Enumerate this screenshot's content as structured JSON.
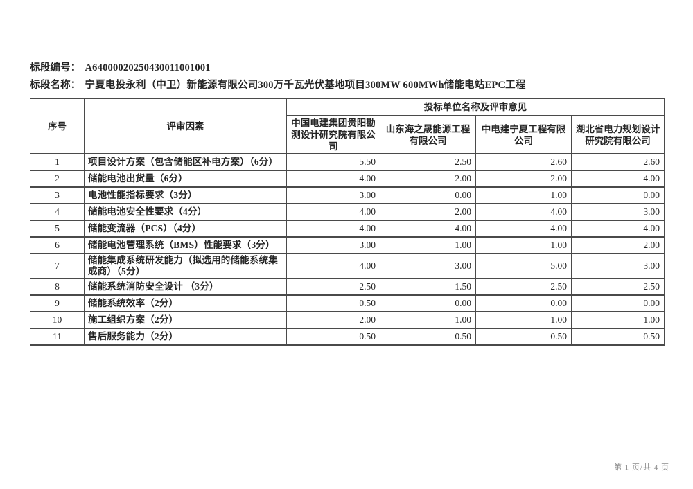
{
  "doc": {
    "code_label": "标段编号：",
    "code": "A64000020250430011001001",
    "name_label": "标段名称：",
    "name": "宁夏电投永利（中卫）新能源有限公司300万千瓦光伏基地项目300MW 600MWh储能电站EPC工程",
    "footer": "第 1 页/共 4 页"
  },
  "table": {
    "col_index": "序号",
    "col_factor": "评审因素",
    "col_group": "投标单位名称及评审意见",
    "bidders": [
      "中国电建集团贵阳勘测设计研究院有限公司",
      "山东海之晟能源工程有限公司",
      "中电建宁夏工程有限公司",
      "湖北省电力规划设计研究院有限公司"
    ],
    "rows": [
      {
        "index": "1",
        "factor": "项目设计方案（包含储能区补电方案）（6分）",
        "scores": [
          "5.50",
          "2.50",
          "2.60",
          "2.60"
        ]
      },
      {
        "index": "2",
        "factor": "储能电池出货量（6分）",
        "scores": [
          "4.00",
          "2.00",
          "2.00",
          "4.00"
        ]
      },
      {
        "index": "3",
        "factor": "电池性能指标要求（3分）",
        "scores": [
          "3.00",
          "0.00",
          "1.00",
          "0.00"
        ]
      },
      {
        "index": "4",
        "factor": "储能电池安全性要求（4分）",
        "scores": [
          "4.00",
          "2.00",
          "4.00",
          "3.00"
        ]
      },
      {
        "index": "5",
        "factor": "储能变流器（PCS）（4分）",
        "scores": [
          "4.00",
          "4.00",
          "4.00",
          "4.00"
        ]
      },
      {
        "index": "6",
        "factor": "储能电池管理系统（BMS）性能要求（3分）",
        "scores": [
          "3.00",
          "1.00",
          "1.00",
          "2.00"
        ]
      },
      {
        "index": "7",
        "factor": "储能集成系统研发能力（拟选用的储能系统集成商）（5分）",
        "scores": [
          "4.00",
          "3.00",
          "5.00",
          "3.00"
        ]
      },
      {
        "index": "8",
        "factor": "储能系统消防安全设计 （3分）",
        "scores": [
          "2.50",
          "1.50",
          "2.50",
          "2.50"
        ]
      },
      {
        "index": "9",
        "factor": "储能系统效率（2分）",
        "scores": [
          "0.50",
          "0.00",
          "0.00",
          "0.00"
        ]
      },
      {
        "index": "10",
        "factor": "施工组织方案（2分）",
        "scores": [
          "2.00",
          "1.00",
          "1.00",
          "1.00"
        ]
      },
      {
        "index": "11",
        "factor": "售后服务能力（2分）",
        "scores": [
          "0.50",
          "0.50",
          "0.50",
          "0.50"
        ]
      }
    ]
  }
}
